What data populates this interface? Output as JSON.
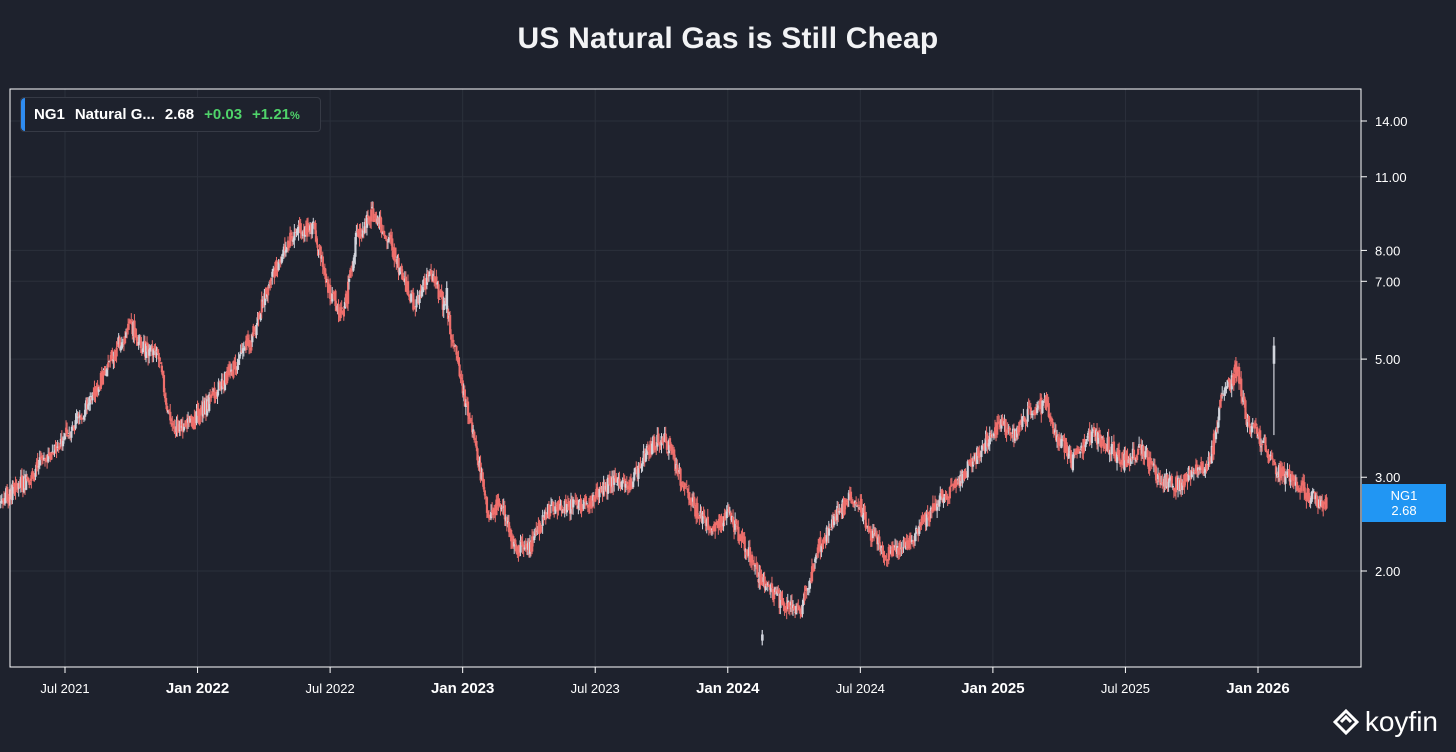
{
  "title": "US Natural Gas is Still Cheap",
  "legend": {
    "ticker": "NG1",
    "name": "Natural G...",
    "price": "2.68",
    "change": "+0.03",
    "change_pct": "+1.21",
    "pct_sign": "%"
  },
  "price_tag": {
    "ticker": "NG1",
    "price": "2.68"
  },
  "brand": {
    "name": "koyfin"
  },
  "colors": {
    "background": "#1e222d",
    "grid": "#2b303b",
    "frame": "#ffffff",
    "down": "#ef6f6c",
    "up": "#d1d4dc",
    "accent": "#2196f3",
    "positive": "#4fd36a"
  },
  "chart_data": {
    "type": "candlestick",
    "title": "US Natural Gas is Still Cheap",
    "series_name": "NG1 Natural Gas",
    "y_scale": "log",
    "ylim": [
      1.35,
      15.5
    ],
    "xlim": [
      "2021-04",
      "2026-05"
    ],
    "y_ticks": [
      {
        "value": 14.0,
        "label": "14.00"
      },
      {
        "value": 11.0,
        "label": "11.00"
      },
      {
        "value": 8.0,
        "label": "8.00"
      },
      {
        "value": 7.0,
        "label": "7.00"
      },
      {
        "value": 5.0,
        "label": "5.00"
      },
      {
        "value": 3.0,
        "label": "3.00"
      },
      {
        "value": 2.0,
        "label": "2.00"
      }
    ],
    "x_ticks": [
      {
        "t": 2021.5,
        "label": "Jul 2021",
        "major": false
      },
      {
        "t": 2022.0,
        "label": "Jan 2022",
        "major": true
      },
      {
        "t": 2022.5,
        "label": "Jul 2022",
        "major": false
      },
      {
        "t": 2023.0,
        "label": "Jan 2023",
        "major": true
      },
      {
        "t": 2023.5,
        "label": "Jul 2023",
        "major": false
      },
      {
        "t": 2024.0,
        "label": "Jan 2024",
        "major": true
      },
      {
        "t": 2024.5,
        "label": "Jul 2024",
        "major": false
      },
      {
        "t": 2025.0,
        "label": "Jan 2025",
        "major": true
      },
      {
        "t": 2025.5,
        "label": "Jul 2025",
        "major": false
      },
      {
        "t": 2026.0,
        "label": "Jan 2026",
        "major": true
      }
    ],
    "close_path": [
      [
        2021.25,
        2.7
      ],
      [
        2021.35,
        2.95
      ],
      [
        2021.45,
        3.35
      ],
      [
        2021.55,
        3.85
      ],
      [
        2021.62,
        4.4
      ],
      [
        2021.7,
        5.3
      ],
      [
        2021.75,
        5.8
      ],
      [
        2021.8,
        5.2
      ],
      [
        2021.85,
        5.1
      ],
      [
        2021.9,
        3.7
      ],
      [
        2021.98,
        3.8
      ],
      [
        2022.05,
        4.2
      ],
      [
        2022.12,
        4.7
      ],
      [
        2022.2,
        5.4
      ],
      [
        2022.28,
        7.2
      ],
      [
        2022.36,
        8.6
      ],
      [
        2022.44,
        9.0
      ],
      [
        2022.48,
        7.0
      ],
      [
        2022.55,
        6.0
      ],
      [
        2022.6,
        8.5
      ],
      [
        2022.66,
        9.4
      ],
      [
        2022.72,
        8.5
      ],
      [
        2022.76,
        7.4
      ],
      [
        2022.82,
        6.3
      ],
      [
        2022.88,
        7.3
      ],
      [
        2022.94,
        6.1
      ],
      [
        2023.0,
        4.4
      ],
      [
        2023.06,
        3.2
      ],
      [
        2023.1,
        2.5
      ],
      [
        2023.14,
        2.75
      ],
      [
        2023.2,
        2.2
      ],
      [
        2023.26,
        2.25
      ],
      [
        2023.32,
        2.6
      ],
      [
        2023.4,
        2.65
      ],
      [
        2023.48,
        2.7
      ],
      [
        2023.56,
        2.95
      ],
      [
        2023.63,
        2.9
      ],
      [
        2023.7,
        3.4
      ],
      [
        2023.76,
        3.6
      ],
      [
        2023.82,
        3.0
      ],
      [
        2023.88,
        2.6
      ],
      [
        2023.94,
        2.4
      ],
      [
        2024.0,
        2.55
      ],
      [
        2024.05,
        2.3
      ],
      [
        2024.12,
        1.95
      ],
      [
        2024.2,
        1.75
      ],
      [
        2024.28,
        1.7
      ],
      [
        2024.34,
        2.2
      ],
      [
        2024.42,
        2.6
      ],
      [
        2024.48,
        2.8
      ],
      [
        2024.54,
        2.35
      ],
      [
        2024.6,
        2.15
      ],
      [
        2024.66,
        2.2
      ],
      [
        2024.74,
        2.5
      ],
      [
        2024.82,
        2.8
      ],
      [
        2024.9,
        3.1
      ],
      [
        2024.96,
        3.4
      ],
      [
        2025.02,
        3.8
      ],
      [
        2025.08,
        3.6
      ],
      [
        2025.14,
        4.0
      ],
      [
        2025.2,
        4.1
      ],
      [
        2025.24,
        3.6
      ],
      [
        2025.3,
        3.2
      ],
      [
        2025.36,
        3.6
      ],
      [
        2025.42,
        3.5
      ],
      [
        2025.5,
        3.2
      ],
      [
        2025.56,
        3.4
      ],
      [
        2025.62,
        3.0
      ],
      [
        2025.7,
        2.9
      ],
      [
        2025.76,
        3.1
      ],
      [
        2025.82,
        3.2
      ],
      [
        2025.86,
        4.2
      ],
      [
        2025.92,
        4.8
      ],
      [
        2025.96,
        3.8
      ],
      [
        2026.02,
        3.5
      ],
      [
        2026.06,
        3.1
      ],
      [
        2026.12,
        3.0
      ],
      [
        2026.18,
        2.8
      ],
      [
        2026.26,
        2.68
      ]
    ],
    "spikes": [
      {
        "t": 2026.06,
        "low": 3.6,
        "high": 5.5,
        "open": 5.3,
        "close": 4.9
      },
      {
        "t": 2024.13,
        "low": 1.45,
        "high": 1.55,
        "open": 1.52,
        "close": 1.48
      },
      {
        "t": 2022.94,
        "low": 6.1,
        "high": 7.0,
        "open": 6.2,
        "close": 6.8
      }
    ],
    "last_value": 2.68,
    "last_change": 0.03,
    "last_change_pct": 1.21
  }
}
